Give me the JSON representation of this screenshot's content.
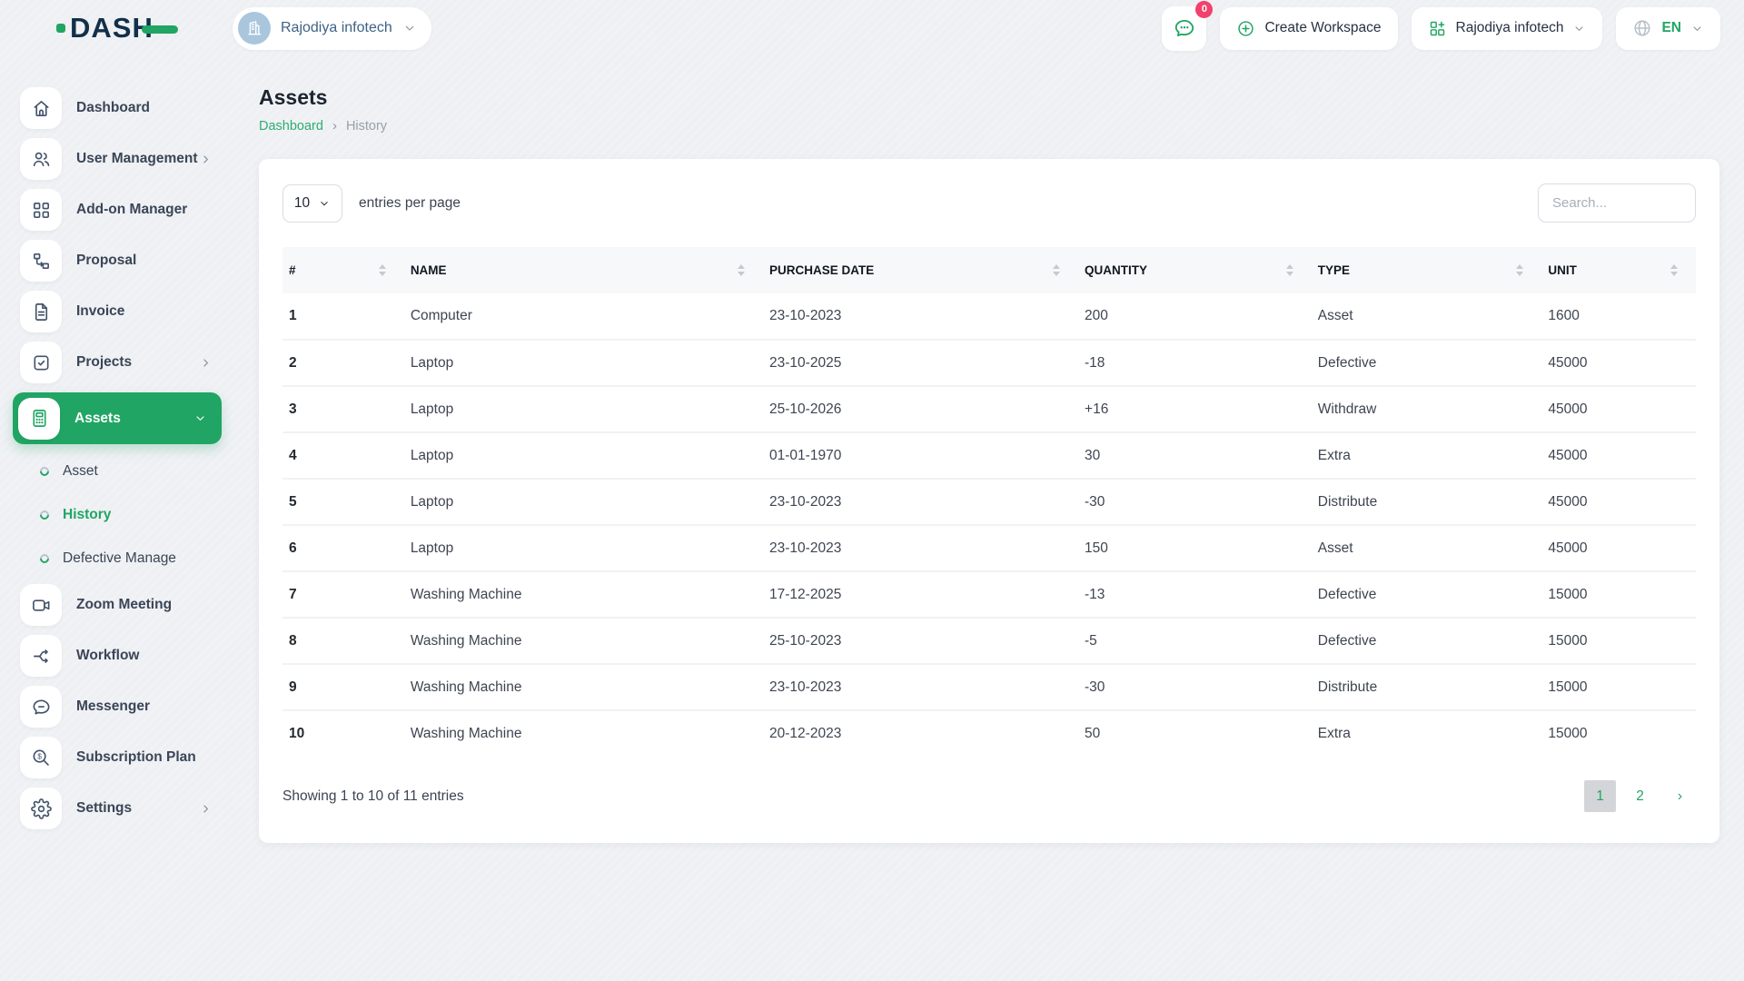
{
  "colors": {
    "accent_green": "#21a564",
    "badge_pink": "#f1416c",
    "logo_navy": "#123049"
  },
  "topbar": {
    "logo_text": "DASH",
    "workspace_switcher": {
      "label": "Rajodiya infotech",
      "avatar_icon": "building-icon"
    },
    "messages_badge": "0",
    "create_workspace_label": "Create Workspace",
    "company_menu_label": "Rajodiya infotech",
    "language": "EN"
  },
  "sidebar": {
    "items": [
      {
        "label": "Dashboard",
        "icon": "home-icon"
      },
      {
        "label": "User Management",
        "icon": "users-icon",
        "chevron": "right"
      },
      {
        "label": "Add-on Manager",
        "icon": "grid-icon"
      },
      {
        "label": "Proposal",
        "icon": "proposal-icon"
      },
      {
        "label": "Invoice",
        "icon": "invoice-icon"
      },
      {
        "label": "Projects",
        "icon": "projects-icon",
        "chevron": "right"
      },
      {
        "label": "Assets",
        "icon": "assets-icon",
        "chevron": "down",
        "active": true,
        "children": [
          {
            "label": "Asset",
            "active": false
          },
          {
            "label": "History",
            "active": true
          },
          {
            "label": "Defective Manage",
            "active": false
          }
        ]
      },
      {
        "label": "Zoom Meeting",
        "icon": "video-camera-icon"
      },
      {
        "label": "Workflow",
        "icon": "workflow-icon"
      },
      {
        "label": "Messenger",
        "icon": "messenger-icon"
      },
      {
        "label": "Subscription Plan",
        "icon": "subscription-icon"
      },
      {
        "label": "Settings",
        "icon": "settings-gear-icon",
        "chevron": "right"
      }
    ]
  },
  "page": {
    "title": "Assets",
    "breadcrumb": [
      {
        "label": "Dashboard"
      },
      {
        "label": "History"
      }
    ],
    "breadcrumb_separator": "›"
  },
  "table_controls": {
    "page_size": "10",
    "entries_label": "entries per page",
    "search_placeholder": "Search..."
  },
  "table": {
    "columns": [
      "#",
      "NAME",
      "PURCHASE DATE",
      "QUANTITY",
      "TYPE",
      "UNIT"
    ],
    "rows": [
      [
        "1",
        "Computer",
        "23-10-2023",
        "200",
        "Asset",
        "1600"
      ],
      [
        "2",
        "Laptop",
        "23-10-2025",
        "-18",
        "Defective",
        "45000"
      ],
      [
        "3",
        "Laptop",
        "25-10-2026",
        "+16",
        "Withdraw",
        "45000"
      ],
      [
        "4",
        "Laptop",
        "01-01-1970",
        "30",
        "Extra",
        "45000"
      ],
      [
        "5",
        "Laptop",
        "23-10-2023",
        "-30",
        "Distribute",
        "45000"
      ],
      [
        "6",
        "Laptop",
        "23-10-2023",
        "150",
        "Asset",
        "45000"
      ],
      [
        "7",
        "Washing Machine",
        "17-12-2025",
        "-13",
        "Defective",
        "15000"
      ],
      [
        "8",
        "Washing Machine",
        "25-10-2023",
        "-5",
        "Defective",
        "15000"
      ],
      [
        "9",
        "Washing Machine",
        "23-10-2023",
        "-30",
        "Distribute",
        "15000"
      ],
      [
        "10",
        "Washing Machine",
        "20-12-2023",
        "50",
        "Extra",
        "15000"
      ]
    ],
    "footer": {
      "summary": "Showing 1 to 10 of 11 entries",
      "pagination": [
        {
          "label": "1",
          "current": true
        },
        {
          "label": "2",
          "current": false
        },
        {
          "label": "›",
          "current": false,
          "next": true
        }
      ]
    }
  }
}
